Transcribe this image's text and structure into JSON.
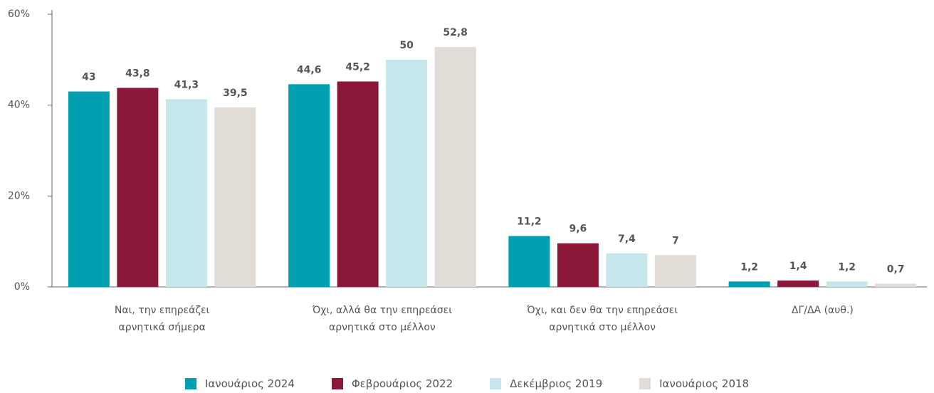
{
  "chart_data": {
    "type": "bar",
    "categories": [
      "Ναι, την επηρεάζει\nαρνητικά σήμερα",
      "Όχι, αλλά θα την επηρεάσει\nαρνητικά στο μέλλον",
      "Όχι, και δεν θα την επηρεάσει\nαρνητικά στο μέλλον",
      "ΔΓ/ΔΑ (αυθ.)"
    ],
    "series": [
      {
        "name": "Ιανουάριος 2024",
        "color": "#00a0b0",
        "values": [
          43,
          44.6,
          11.2,
          1.2
        ],
        "value_labels": [
          "43",
          "44,6",
          "11,2",
          "1,2"
        ]
      },
      {
        "name": "Φεβρουάριος 2022",
        "color": "#8b1838",
        "values": [
          43.8,
          45.2,
          9.6,
          1.4
        ],
        "value_labels": [
          "43,8",
          "45,2",
          "9,6",
          "1,4"
        ]
      },
      {
        "name": "Δεκέμβριος 2019",
        "color": "#c5e6ea",
        "values": [
          41.3,
          50,
          7.4,
          1.2
        ],
        "value_labels": [
          "41,3",
          "50",
          "7,4",
          "1,2"
        ]
      },
      {
        "name": "Ιανουάριος 2018",
        "color": "#e2dcd7",
        "values": [
          39.5,
          52.8,
          7,
          0.7
        ],
        "value_labels": [
          "39,5",
          "52,8",
          "7",
          "0,7"
        ]
      }
    ],
    "ylim": [
      0,
      60
    ],
    "yticks": [
      {
        "value": 0,
        "label": "0%"
      },
      {
        "value": 20,
        "label": "20%"
      },
      {
        "value": 40,
        "label": "40%"
      },
      {
        "value": 60,
        "label": "60%"
      }
    ],
    "grid": false,
    "legend": "bottom"
  }
}
